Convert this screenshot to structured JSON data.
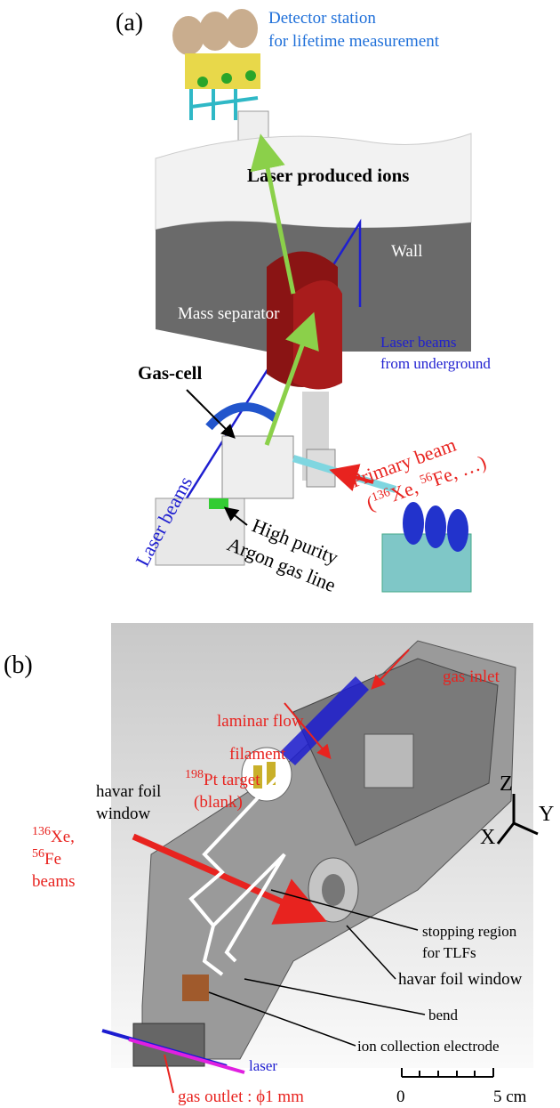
{
  "panel_a": {
    "label": "(a)",
    "detector_station": [
      "Detector station",
      "for lifetime measurement"
    ],
    "laser_produced_ions": "Laser produced ions",
    "wall": "Wall",
    "mass_separator": "Mass separator",
    "laser_beams_underground": [
      "Laser beams",
      "from underground"
    ],
    "gas_cell": "Gas-cell",
    "laser_beams": "Laser beams",
    "primary_beam": {
      "title": "Primary beam",
      "open": "(",
      "sup1": "136",
      "el1": "Xe, ",
      "sup2": "56",
      "el2": "Fe, …)"
    },
    "gas_line": [
      "High purity",
      "Argon gas line"
    ]
  },
  "panel_b": {
    "label": "(b)",
    "gas_inlet": "gas inlet",
    "laminar_flow": "laminar flow",
    "filament": "filament",
    "target": {
      "sup": "198",
      "text": "Pt target",
      "note": "(blank)"
    },
    "havar_foil_window_left": [
      "havar foil",
      "window"
    ],
    "beams": {
      "sup1": "136",
      "el1": "Xe,",
      "sup2": "56",
      "el2": "Fe",
      "word": "beams"
    },
    "axes": {
      "z": "Z",
      "y": "Y",
      "x": "X"
    },
    "stopping_region": [
      "stopping region",
      "for TLFs"
    ],
    "havar_foil_window_right": "havar foil window",
    "bend": "bend",
    "ion_collection_electrode": "ion collection electrode",
    "laser": "laser",
    "gas_outlet": "gas outlet : ϕ1 mm",
    "scale": {
      "start": "0",
      "end": "5 cm"
    }
  }
}
